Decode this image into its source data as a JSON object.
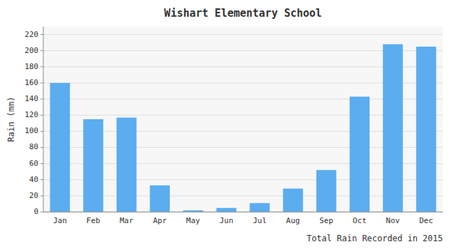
{
  "chart_data": {
    "type": "bar",
    "title": "Wishart Elementary School",
    "xlabel": "Total Rain Recorded in 2015",
    "ylabel": "Rain (mm)",
    "categories": [
      "Jan",
      "Feb",
      "Mar",
      "Apr",
      "May",
      "Jun",
      "Jul",
      "Aug",
      "Sep",
      "Oct",
      "Nov",
      "Dec"
    ],
    "values": [
      160,
      115,
      117,
      33,
      2,
      5,
      11,
      29,
      52,
      143,
      208,
      205
    ],
    "color": "#5BADF0",
    "ylim": [
      0,
      230
    ],
    "yticks": [
      0,
      20,
      40,
      60,
      80,
      100,
      120,
      140,
      160,
      180,
      200,
      220
    ],
    "grid": true
  }
}
